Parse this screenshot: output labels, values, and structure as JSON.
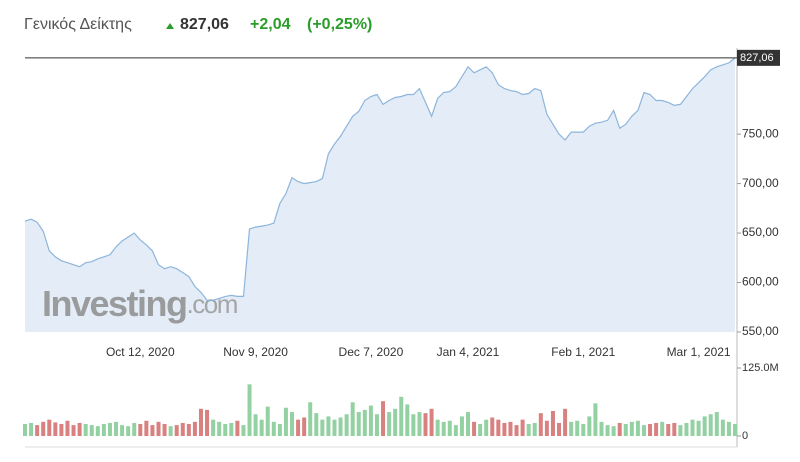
{
  "chart_data": {
    "type": "area",
    "title": "Γενικός Δείκτης",
    "last": {
      "value": 827.06,
      "label": "827,06"
    },
    "change": "+2,04",
    "change_percent": "(+0,25%)",
    "watermark": {
      "brand": "Investing",
      "suffix": ".com"
    },
    "color": "#8db5dc",
    "fill": "#e4edf7",
    "categories": [
      null,
      null,
      null,
      null,
      null,
      null,
      null,
      null,
      null,
      null,
      null,
      null,
      null,
      null,
      null,
      null,
      null,
      null,
      null,
      "Oct 12, 2020",
      null,
      null,
      null,
      null,
      null,
      null,
      null,
      null,
      null,
      null,
      null,
      null,
      null,
      null,
      null,
      null,
      null,
      null,
      "Nov 9, 2020",
      null,
      null,
      null,
      null,
      null,
      null,
      null,
      null,
      null,
      null,
      null,
      null,
      null,
      null,
      null,
      null,
      null,
      null,
      "Dec 7, 2020",
      null,
      null,
      null,
      null,
      null,
      null,
      null,
      null,
      null,
      null,
      null,
      null,
      null,
      null,
      null,
      "Jan 4, 2021",
      null,
      null,
      null,
      null,
      null,
      null,
      null,
      null,
      null,
      null,
      null,
      null,
      null,
      null,
      null,
      null,
      null,
      null,
      "Feb 1, 2021",
      null,
      null,
      null,
      null,
      null,
      null,
      null,
      null,
      null,
      null,
      null,
      null,
      null,
      null,
      null,
      null,
      null,
      null,
      "Mar 1, 2021",
      null,
      null,
      null,
      null,
      null,
      null
    ],
    "values": [
      662,
      664,
      661,
      652,
      632,
      626,
      622,
      620,
      618,
      616,
      620,
      621,
      624,
      626,
      628,
      636,
      642,
      646,
      650,
      643,
      638,
      632,
      618,
      614,
      616,
      614,
      610,
      606,
      596,
      590,
      582,
      582,
      584,
      586,
      587,
      586,
      586,
      654,
      656,
      657,
      658,
      660,
      680,
      690,
      706,
      702,
      700,
      701,
      702,
      705,
      730,
      740,
      748,
      758,
      768,
      773,
      784,
      788,
      790,
      780,
      784,
      787,
      788,
      790,
      790,
      796,
      782,
      768,
      786,
      792,
      793,
      798,
      808,
      818,
      812,
      815,
      818,
      812,
      800,
      796,
      794,
      793,
      790,
      791,
      796,
      794,
      770,
      760,
      750,
      744,
      752,
      752,
      752,
      758,
      761,
      762,
      764,
      774,
      756,
      760,
      768,
      774,
      792,
      790,
      784,
      784,
      782,
      779,
      780,
      788,
      796,
      802,
      808,
      815,
      818,
      820,
      822,
      827.06
    ],
    "ylim": [
      550,
      835
    ],
    "yticks": [
      {
        "value": 550,
        "label": "550,00"
      },
      {
        "value": 600,
        "label": "600,00"
      },
      {
        "value": 650,
        "label": "650,00"
      },
      {
        "value": 700,
        "label": "700,00"
      },
      {
        "value": 750,
        "label": "750,00"
      }
    ],
    "volume": {
      "up_color": "#94d1a2",
      "down_color": "#d98080",
      "values": [
        22,
        24,
        20,
        26,
        30,
        25,
        22,
        28,
        20,
        24,
        22,
        20,
        18,
        22,
        24,
        26,
        20,
        18,
        24,
        22,
        28,
        20,
        26,
        22,
        18,
        20,
        24,
        22,
        26,
        50,
        48,
        30,
        26,
        22,
        24,
        28,
        20,
        95,
        40,
        30,
        54,
        26,
        22,
        52,
        44,
        30,
        34,
        62,
        42,
        30,
        36,
        30,
        34,
        40,
        62,
        44,
        48,
        56,
        40,
        64,
        44,
        50,
        72,
        58,
        40,
        44,
        42,
        50,
        30,
        26,
        28,
        20,
        36,
        44,
        26,
        22,
        30,
        34,
        30,
        24,
        26,
        20,
        30,
        22,
        24,
        42,
        28,
        46,
        24,
        50,
        26,
        28,
        22,
        36,
        60,
        26,
        20,
        18,
        24,
        22,
        26,
        28,
        20,
        22,
        24,
        26,
        22,
        24,
        20,
        24,
        30,
        28,
        36,
        40,
        44,
        30,
        26,
        22
      ],
      "ylim": [
        0,
        125
      ],
      "yticks": [
        0,
        {
          "value": 125,
          "label": "125.0M"
        }
      ]
    }
  }
}
